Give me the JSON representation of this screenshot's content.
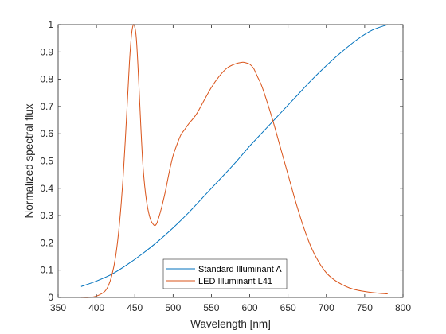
{
  "chart_data": {
    "type": "line",
    "title": "",
    "xlabel": "Wavelength [nm]",
    "ylabel": "Normalized spectral flux",
    "xlim": [
      350,
      800
    ],
    "ylim": [
      0,
      1
    ],
    "xticks": [
      350,
      400,
      450,
      500,
      550,
      600,
      650,
      700,
      750,
      800
    ],
    "yticks": [
      0,
      0.1,
      0.2,
      0.3,
      0.4,
      0.5,
      0.6,
      0.7,
      0.8,
      0.9,
      1
    ],
    "ytick_labels": [
      "0",
      "0.1",
      "0.2",
      "0.3",
      "0.4",
      "0.5",
      "0.6",
      "0.7",
      "0.8",
      "0.9",
      "1"
    ],
    "grid": false,
    "legend_position": "bottom-center",
    "series": [
      {
        "name": "Standard Illuminant A",
        "color": "#0072BD",
        "x": [
          380,
          400,
          420,
          440,
          460,
          480,
          500,
          520,
          540,
          560,
          580,
          600,
          620,
          640,
          660,
          680,
          700,
          720,
          740,
          760,
          780
        ],
        "y": [
          0.04,
          0.06,
          0.085,
          0.12,
          0.16,
          0.205,
          0.255,
          0.31,
          0.37,
          0.43,
          0.49,
          0.555,
          0.615,
          0.675,
          0.735,
          0.795,
          0.85,
          0.9,
          0.945,
          0.98,
          1.0
        ]
      },
      {
        "name": "LED Illuminant L41",
        "color": "#D95319",
        "x": [
          380,
          390,
          400,
          410,
          415,
          420,
          425,
          430,
          435,
          440,
          443,
          446,
          449,
          452,
          455,
          458,
          461,
          465,
          470,
          475,
          478,
          481,
          485,
          490,
          495,
          500,
          505,
          510,
          515,
          520,
          530,
          540,
          550,
          560,
          570,
          580,
          590,
          595,
          600,
          605,
          610,
          615,
          620,
          630,
          640,
          650,
          660,
          670,
          680,
          690,
          700,
          710,
          720,
          730,
          740,
          750,
          760,
          770,
          780
        ],
        "y": [
          0.0,
          0.0,
          0.005,
          0.02,
          0.04,
          0.08,
          0.15,
          0.27,
          0.45,
          0.7,
          0.86,
          0.97,
          1.0,
          0.95,
          0.8,
          0.62,
          0.47,
          0.36,
          0.29,
          0.265,
          0.268,
          0.29,
          0.33,
          0.39,
          0.46,
          0.52,
          0.56,
          0.595,
          0.615,
          0.635,
          0.67,
          0.72,
          0.77,
          0.81,
          0.84,
          0.855,
          0.862,
          0.86,
          0.855,
          0.84,
          0.81,
          0.78,
          0.74,
          0.65,
          0.55,
          0.45,
          0.35,
          0.26,
          0.185,
          0.13,
          0.09,
          0.065,
          0.048,
          0.035,
          0.027,
          0.022,
          0.018,
          0.015,
          0.013
        ]
      }
    ]
  }
}
